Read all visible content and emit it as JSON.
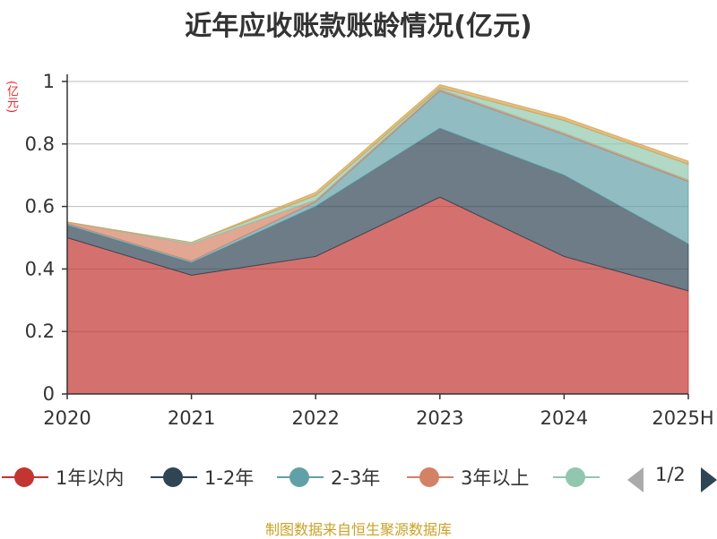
{
  "chart_data": {
    "type": "area",
    "stacked": true,
    "title": "近年应收账款账龄情况(亿元)",
    "unit_label": "(亿元)",
    "categories": [
      "2020",
      "2021",
      "2022",
      "2023",
      "2024",
      "2025H"
    ],
    "ylim": [
      0,
      1
    ],
    "yticks": [
      "0",
      "0.2",
      "0.4",
      "0.6",
      "0.8",
      "1"
    ],
    "ytick_values": [
      0,
      0.2,
      0.4,
      0.6,
      0.8,
      1
    ],
    "grid": true,
    "legend_position": "bottom",
    "series": [
      {
        "name": "1年以内",
        "color": "#c23531",
        "values": [
          0.5,
          0.38,
          0.44,
          0.63,
          0.44,
          0.33
        ]
      },
      {
        "name": "1-2年",
        "color": "#2f4554",
        "values": [
          0.04,
          0.04,
          0.16,
          0.22,
          0.26,
          0.15
        ]
      },
      {
        "name": "2-3年",
        "color": "#61a0a8",
        "values": [
          0.005,
          0.005,
          0.015,
          0.12,
          0.13,
          0.2
        ]
      },
      {
        "name": "3年以上",
        "color": "#d48265",
        "values": [
          0.005,
          0.055,
          0.005,
          0.005,
          0.005,
          0.005
        ]
      },
      {
        "name": "",
        "color": "#91c7ae",
        "values": [
          0.0,
          0.005,
          0.015,
          0.005,
          0.04,
          0.05
        ]
      },
      {
        "name": "",
        "color": "#d4a34f",
        "values": [
          0.0,
          0.0,
          0.01,
          0.01,
          0.01,
          0.01
        ]
      }
    ]
  },
  "legend": {
    "items": [
      {
        "label": "1年以内",
        "color": "#c23531"
      },
      {
        "label": "1-2年",
        "color": "#2f4554"
      },
      {
        "label": "2-3年",
        "color": "#61a0a8"
      },
      {
        "label": "3年以上",
        "color": "#d48265"
      },
      {
        "label": "",
        "color": "#91c7ae"
      }
    ],
    "page": "1/2"
  },
  "footer": "制图数据来自恒生聚源数据库"
}
